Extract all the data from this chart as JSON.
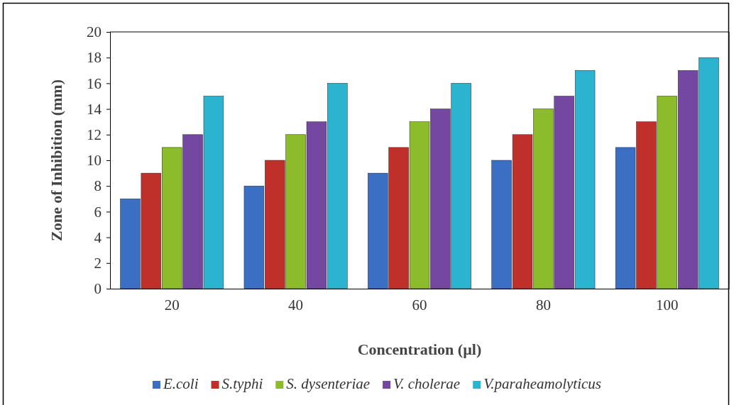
{
  "chart_data": {
    "type": "bar",
    "xlabel": "Concentration (µl)",
    "ylabel": "Zone of Inhibition (mm)",
    "categories": [
      "20",
      "40",
      "60",
      "80",
      "100"
    ],
    "series": [
      {
        "name": "E.coli",
        "color": "#3a6fc4",
        "values": [
          7,
          8,
          9,
          10,
          11
        ]
      },
      {
        "name": "S.typhi",
        "color": "#c0302a",
        "values": [
          9,
          10,
          11,
          12,
          13
        ]
      },
      {
        "name": "S. dysenteriae",
        "color": "#8cbc2c",
        "values": [
          11,
          12,
          13,
          14,
          15
        ]
      },
      {
        "name": "V. cholerae",
        "color": "#7448a0",
        "values": [
          12,
          13,
          14,
          15,
          17
        ]
      },
      {
        "name": "V.paraheamolyticus",
        "color": "#2bb3d0",
        "values": [
          15,
          16,
          16,
          17,
          18
        ]
      }
    ],
    "ylim": [
      0,
      20
    ],
    "yticks": [
      0,
      2,
      4,
      6,
      8,
      10,
      12,
      14,
      16,
      18,
      20
    ],
    "grid": false,
    "legend": "bottom"
  }
}
